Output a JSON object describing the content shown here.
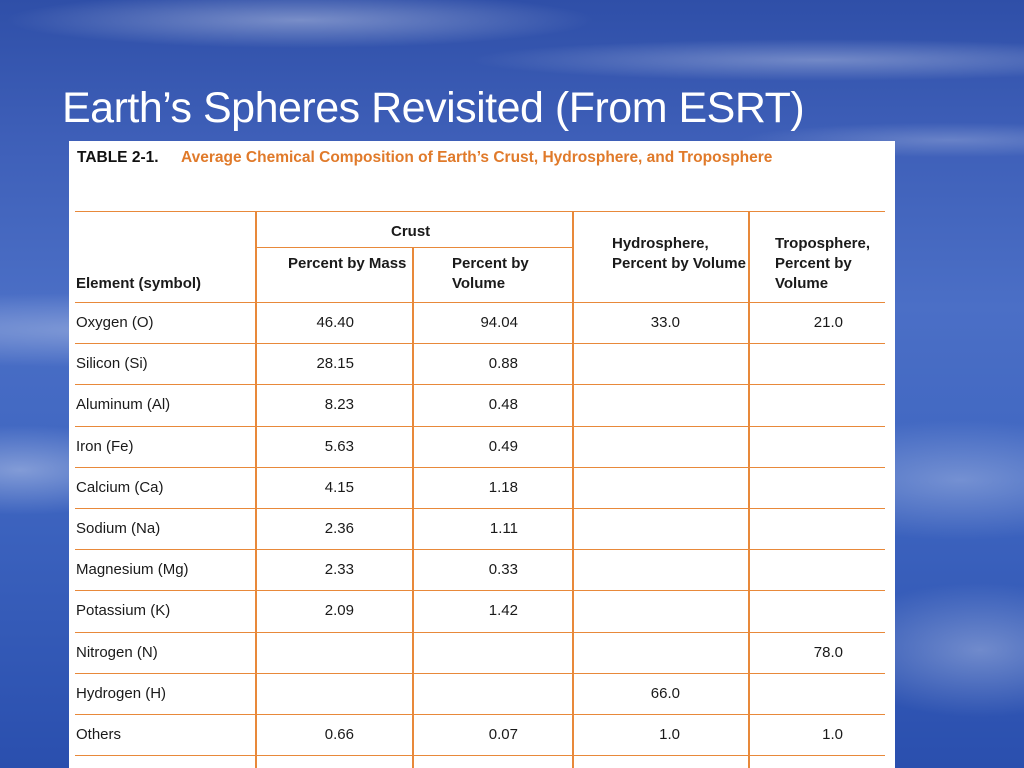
{
  "slide": {
    "title": "Earth’s Spheres Revisited (From ESRT)"
  },
  "table": {
    "caption_label": "TABLE 2-1.",
    "caption_text": "Average Chemical Composition of Earth’s Crust, Hydrosphere, and Troposphere",
    "headers": {
      "element": "Element (symbol)",
      "crust_group": "Crust",
      "crust_mass": "Percent by Mass",
      "crust_volume": "Percent by Volume",
      "hydrosphere": "Hydrosphere, Percent by Volume",
      "troposphere": "Troposphere, Percent by Volume"
    },
    "rows": [
      {
        "element": "Oxygen (O)",
        "crust_mass": "46.40",
        "crust_volume": "94.04",
        "hydrosphere": "33.0",
        "troposphere": "21.0"
      },
      {
        "element": "Silicon (Si)",
        "crust_mass": "28.15",
        "crust_volume": "0.88",
        "hydrosphere": "",
        "troposphere": ""
      },
      {
        "element": "Aluminum (Al)",
        "crust_mass": "8.23",
        "crust_volume": "0.48",
        "hydrosphere": "",
        "troposphere": ""
      },
      {
        "element": "Iron (Fe)",
        "crust_mass": "5.63",
        "crust_volume": "0.49",
        "hydrosphere": "",
        "troposphere": ""
      },
      {
        "element": "Calcium (Ca)",
        "crust_mass": "4.15",
        "crust_volume": "1.18",
        "hydrosphere": "",
        "troposphere": ""
      },
      {
        "element": "Sodium (Na)",
        "crust_mass": "2.36",
        "crust_volume": "1.11",
        "hydrosphere": "",
        "troposphere": ""
      },
      {
        "element": "Magnesium (Mg)",
        "crust_mass": "2.33",
        "crust_volume": "0.33",
        "hydrosphere": "",
        "troposphere": ""
      },
      {
        "element": "Potassium (K)",
        "crust_mass": "2.09",
        "crust_volume": "1.42",
        "hydrosphere": "",
        "troposphere": ""
      },
      {
        "element": "Nitrogen (N)",
        "crust_mass": "",
        "crust_volume": "",
        "hydrosphere": "",
        "troposphere": "78.0"
      },
      {
        "element": "Hydrogen (H)",
        "crust_mass": "",
        "crust_volume": "",
        "hydrosphere": "66.0",
        "troposphere": ""
      },
      {
        "element": "Others",
        "crust_mass": "0.66",
        "crust_volume": "0.07",
        "hydrosphere": "1.0",
        "troposphere": "1.0"
      }
    ]
  },
  "colors": {
    "accent": "#e8893a",
    "caption_text": "#e07a2a",
    "background": "#3e5fb8"
  }
}
